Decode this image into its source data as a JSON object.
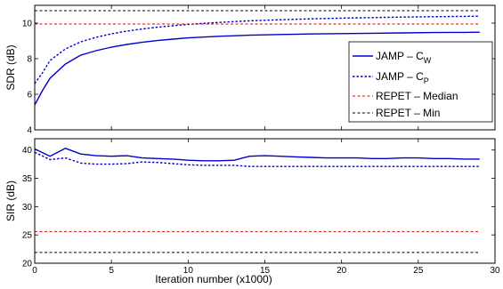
{
  "figure": {
    "xlabel": "Iteration number (x1000)"
  },
  "chart_data": [
    {
      "type": "line",
      "ylabel": "SDR (dB)",
      "xlabel": "",
      "xlim": [
        0,
        30
      ],
      "ylim": [
        4,
        11
      ],
      "xticks": [
        0,
        5,
        10,
        15,
        20,
        25,
        30
      ],
      "xtick_labels_shown": false,
      "yticks": [
        4,
        6,
        8,
        10
      ],
      "grid": false,
      "legend_position": "right",
      "series": [
        {
          "name": "JAMP – C",
          "name_subscript": "W",
          "color": "#0000cc",
          "dash": "solid",
          "x": [
            0,
            0.5,
            1,
            2,
            3,
            4,
            5,
            6,
            7,
            8,
            9,
            10,
            12,
            14,
            16,
            18,
            20,
            22,
            24,
            26,
            28,
            29
          ],
          "values": [
            5.4,
            6.2,
            6.9,
            7.7,
            8.2,
            8.45,
            8.65,
            8.8,
            8.92,
            9.02,
            9.1,
            9.17,
            9.26,
            9.32,
            9.36,
            9.39,
            9.41,
            9.43,
            9.45,
            9.47,
            9.48,
            9.49
          ]
        },
        {
          "name": "JAMP – C",
          "name_subscript": "P",
          "color": "#0000cc",
          "dash": "dotted",
          "x": [
            0,
            0.5,
            1,
            2,
            3,
            4,
            5,
            6,
            7,
            8,
            9,
            10,
            12,
            14,
            16,
            18,
            20,
            22,
            24,
            26,
            28,
            29
          ],
          "values": [
            6.6,
            7.2,
            7.9,
            8.55,
            8.95,
            9.2,
            9.4,
            9.55,
            9.67,
            9.77,
            9.85,
            9.93,
            10.04,
            10.13,
            10.19,
            10.24,
            10.28,
            10.31,
            10.34,
            10.36,
            10.38,
            10.39
          ]
        },
        {
          "name": "REPET – Median",
          "color": "#dd0000",
          "dash": "dashed",
          "x": [
            0,
            29
          ],
          "values": [
            9.95,
            9.95
          ]
        },
        {
          "name": "REPET – Min",
          "color": "#000000",
          "dash": "dashed",
          "x": [
            0,
            29
          ],
          "values": [
            10.7,
            10.7
          ]
        }
      ]
    },
    {
      "type": "line",
      "ylabel": "SIR (dB)",
      "xlabel": "Iteration number (x1000)",
      "xlim": [
        0,
        30
      ],
      "ylim": [
        20,
        42
      ],
      "xticks": [
        0,
        5,
        10,
        15,
        20,
        25,
        30
      ],
      "yticks": [
        20,
        25,
        30,
        35,
        40
      ],
      "grid": false,
      "series": [
        {
          "name": "JAMP – C",
          "name_subscript": "W",
          "color": "#0000cc",
          "dash": "solid",
          "x": [
            0,
            1,
            2,
            3,
            4,
            5,
            6,
            7,
            8,
            9,
            10,
            11,
            12,
            13,
            14,
            15,
            16,
            17,
            18,
            19,
            20,
            21,
            22,
            23,
            24,
            25,
            26,
            27,
            28,
            29
          ],
          "values": [
            40.2,
            38.9,
            40.3,
            39.3,
            39.0,
            38.9,
            39.0,
            38.6,
            38.5,
            38.4,
            38.2,
            38.1,
            38.1,
            38.2,
            38.9,
            39.0,
            38.9,
            38.8,
            38.7,
            38.6,
            38.6,
            38.6,
            38.5,
            38.5,
            38.6,
            38.6,
            38.5,
            38.5,
            38.4,
            38.4
          ]
        },
        {
          "name": "JAMP – C",
          "name_subscript": "P",
          "color": "#0000cc",
          "dash": "dotted",
          "x": [
            0,
            1,
            2,
            3,
            4,
            5,
            6,
            7,
            8,
            9,
            10,
            11,
            12,
            13,
            14,
            15,
            16,
            17,
            18,
            19,
            20,
            21,
            22,
            23,
            24,
            25,
            26,
            27,
            28,
            29
          ],
          "values": [
            39.6,
            38.3,
            38.6,
            37.7,
            37.5,
            37.5,
            37.6,
            37.9,
            37.8,
            37.6,
            37.4,
            37.3,
            37.3,
            37.3,
            37.1,
            37.1,
            37.1,
            37.1,
            37.1,
            37.1,
            37.1,
            37.1,
            37.1,
            37.1,
            37.1,
            37.1,
            37.1,
            37.1,
            37.1,
            37.1
          ]
        },
        {
          "name": "REPET – Median",
          "color": "#dd0000",
          "dash": "dashed",
          "x": [
            0,
            29
          ],
          "values": [
            25.6,
            25.6
          ]
        },
        {
          "name": "REPET – Min",
          "color": "#000000",
          "dash": "dashed",
          "x": [
            0,
            29
          ],
          "values": [
            21.9,
            21.9
          ]
        }
      ]
    }
  ]
}
